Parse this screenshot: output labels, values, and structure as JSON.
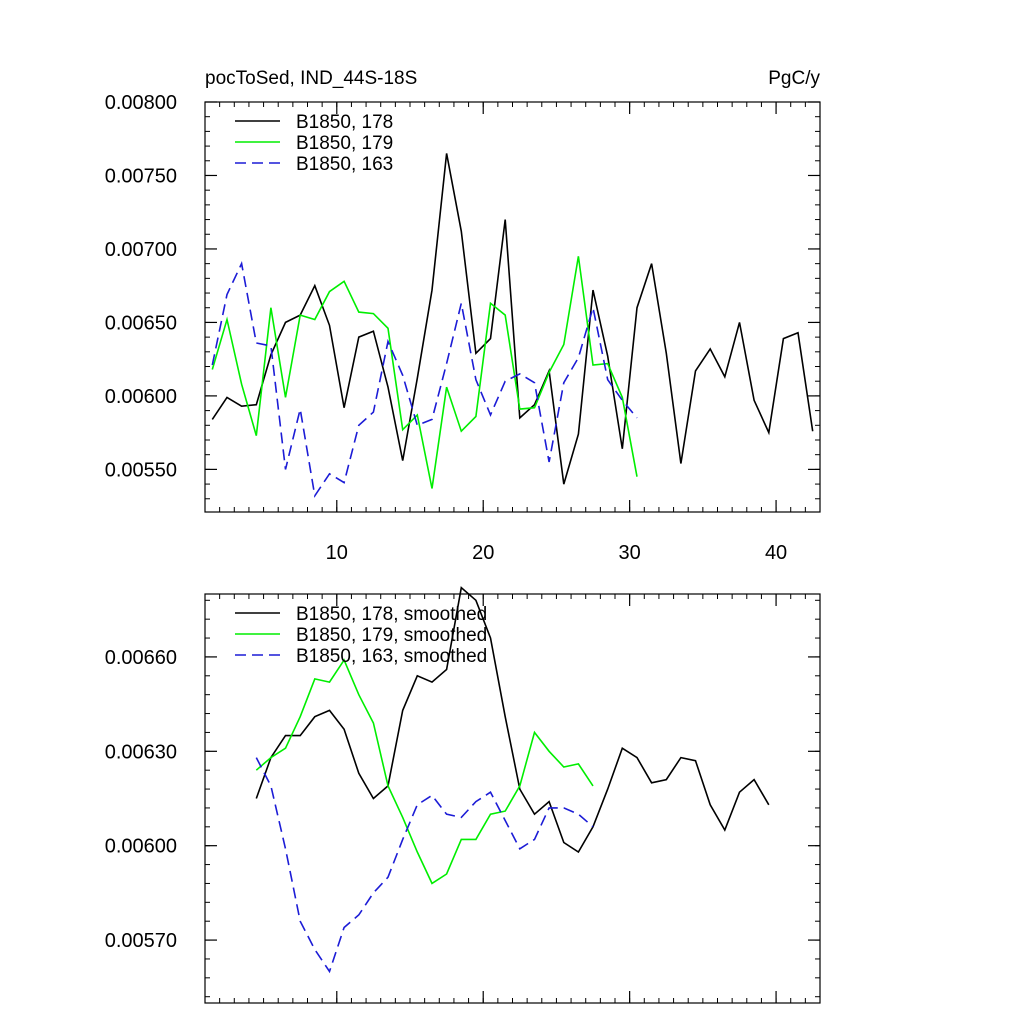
{
  "chart_data": [
    {
      "type": "line",
      "title_left": "pocToSed, IND_44S-18S",
      "title_right": "PgC/y",
      "xlim": [
        1,
        43
      ],
      "ylim": [
        0.00521,
        0.008
      ],
      "xticks": [
        10,
        20,
        30,
        40
      ],
      "xtick_labels": [
        "10",
        "20",
        "30",
        "40"
      ],
      "yticks": [
        0.0055,
        0.006,
        0.0065,
        0.007,
        0.0075,
        0.008
      ],
      "ytick_labels": [
        "0.00550",
        "0.00600",
        "0.00650",
        "0.00700",
        "0.00750",
        "0.00800"
      ],
      "legend_position": "top-left",
      "series": [
        {
          "name": "B1850, 178",
          "color": "#000000",
          "dash": "solid",
          "x": [
            1.5,
            2.5,
            3.5,
            4.5,
            5.5,
            6.5,
            7.5,
            8.5,
            9.5,
            10.5,
            11.5,
            12.5,
            13.5,
            14.5,
            15.5,
            16.5,
            17.5,
            18.5,
            19.5,
            20.5,
            21.5,
            22.5,
            23.5,
            24.5,
            25.5,
            26.5,
            27.5,
            28.5,
            29.5,
            30.5,
            31.5,
            32.5,
            33.5,
            34.5,
            35.5,
            36.5,
            37.5,
            38.5,
            39.5,
            40.5,
            41.5,
            42.5
          ],
          "y": [
            0.00584,
            0.00599,
            0.00593,
            0.00594,
            0.00628,
            0.0065,
            0.00655,
            0.00675,
            0.00648,
            0.00592,
            0.0064,
            0.00644,
            0.00606,
            0.00556,
            0.00612,
            0.00672,
            0.00765,
            0.00712,
            0.00629,
            0.00639,
            0.0072,
            0.00585,
            0.00594,
            0.00617,
            0.0054,
            0.00574,
            0.00672,
            0.00627,
            0.00564,
            0.0066,
            0.0069,
            0.00629,
            0.00554,
            0.00617,
            0.00632,
            0.00613,
            0.0065,
            0.00597,
            0.00575,
            0.00639,
            0.00643,
            0.00576
          ]
        },
        {
          "name": "B1850, 179",
          "color": "#00ee00",
          "dash": "solid",
          "x": [
            1.5,
            2.5,
            3.5,
            4.5,
            5.5,
            6.5,
            7.5,
            8.5,
            9.5,
            10.5,
            11.5,
            12.5,
            13.5,
            14.5,
            15.5,
            16.5,
            17.5,
            18.5,
            19.5,
            20.5,
            21.5,
            22.5,
            23.5,
            24.5,
            25.5,
            26.5,
            27.5,
            28.5,
            29.5,
            30.5
          ],
          "y": [
            0.00618,
            0.00652,
            0.00608,
            0.00573,
            0.0066,
            0.00599,
            0.00655,
            0.00652,
            0.00671,
            0.00678,
            0.00657,
            0.00656,
            0.00646,
            0.00577,
            0.00587,
            0.00537,
            0.00606,
            0.00576,
            0.00586,
            0.00663,
            0.00655,
            0.00591,
            0.00592,
            0.00616,
            0.00635,
            0.00695,
            0.00621,
            0.00622,
            0.00599,
            0.00545
          ]
        },
        {
          "name": "B1850, 163",
          "color": "#1c1cd6",
          "dash": "dashed",
          "x": [
            1.5,
            2.5,
            3.5,
            4.5,
            5.5,
            6.5,
            7.5,
            8.5,
            9.5,
            10.5,
            11.5,
            12.5,
            13.5,
            14.5,
            15.5,
            16.5,
            17.5,
            18.5,
            19.5,
            20.5,
            21.5,
            22.5,
            23.5,
            24.5,
            25.5,
            26.5,
            27.5,
            28.5,
            29.5,
            30.5
          ],
          "y": [
            0.00621,
            0.00669,
            0.0069,
            0.00636,
            0.00634,
            0.0055,
            0.00591,
            0.00532,
            0.00547,
            0.00541,
            0.0058,
            0.00589,
            0.00637,
            0.00614,
            0.0058,
            0.00584,
            0.00622,
            0.00663,
            0.00611,
            0.00587,
            0.0061,
            0.00615,
            0.00609,
            0.00555,
            0.00609,
            0.00626,
            0.0066,
            0.00611,
            0.00597,
            0.00585
          ]
        }
      ]
    },
    {
      "type": "line",
      "xlim": [
        1,
        43
      ],
      "ylim": [
        0.0055,
        0.0068
      ],
      "xticks": [
        10,
        20,
        30,
        40
      ],
      "yticks": [
        0.0057,
        0.006,
        0.0063,
        0.0066
      ],
      "ytick_labels": [
        "0.00570",
        "0.00600",
        "0.00630",
        "0.00660"
      ],
      "legend_position": "top-left",
      "series": [
        {
          "name": "B1850, 178, smoothed",
          "color": "#000000",
          "dash": "solid",
          "x": [
            4.5,
            5.5,
            6.5,
            7.5,
            8.5,
            9.5,
            10.5,
            11.5,
            12.5,
            13.5,
            14.5,
            15.5,
            16.5,
            17.5,
            18.5,
            19.5,
            20.5,
            21.5,
            22.5,
            23.5,
            24.5,
            25.5,
            26.5,
            27.5,
            28.5,
            29.5,
            30.5,
            31.5,
            32.5,
            33.5,
            34.5,
            35.5,
            36.5,
            37.5,
            38.5,
            39.5
          ],
          "y": [
            0.00615,
            0.00628,
            0.00635,
            0.00635,
            0.00641,
            0.00643,
            0.00637,
            0.00623,
            0.00615,
            0.00619,
            0.00643,
            0.00654,
            0.00652,
            0.00656,
            0.00682,
            0.00678,
            0.00666,
            0.00641,
            0.00618,
            0.0061,
            0.00614,
            0.00601,
            0.00598,
            0.00606,
            0.00618,
            0.00631,
            0.00628,
            0.0062,
            0.00621,
            0.00628,
            0.00627,
            0.00613,
            0.00605,
            0.00617,
            0.00621,
            0.00613
          ]
        },
        {
          "name": "B1850, 179, smoothed",
          "color": "#00ee00",
          "dash": "solid",
          "x": [
            4.5,
            5.5,
            6.5,
            7.5,
            8.5,
            9.5,
            10.5,
            11.5,
            12.5,
            13.5,
            14.5,
            15.5,
            16.5,
            17.5,
            18.5,
            19.5,
            20.5,
            21.5,
            22.5,
            23.5,
            24.5,
            25.5,
            26.5,
            27.5
          ],
          "y": [
            0.00624,
            0.00628,
            0.00631,
            0.00641,
            0.00653,
            0.00652,
            0.00659,
            0.00648,
            0.00639,
            0.00619,
            0.00609,
            0.00598,
            0.00588,
            0.00591,
            0.00602,
            0.00602,
            0.0061,
            0.00611,
            0.00619,
            0.00636,
            0.0063,
            0.00625,
            0.00626,
            0.00619
          ]
        },
        {
          "name": "B1850, 163, smoothed",
          "color": "#1c1cd6",
          "dash": "dashed",
          "x": [
            4.5,
            5.5,
            6.5,
            7.5,
            8.5,
            9.5,
            10.5,
            11.5,
            12.5,
            13.5,
            14.5,
            15.5,
            16.5,
            17.5,
            18.5,
            19.5,
            20.5,
            21.5,
            22.5,
            23.5,
            24.5,
            25.5,
            26.5,
            27.5
          ],
          "y": [
            0.00628,
            0.00619,
            0.00599,
            0.00576,
            0.00567,
            0.0056,
            0.00574,
            0.00578,
            0.00585,
            0.0059,
            0.00602,
            0.00613,
            0.00616,
            0.0061,
            0.00609,
            0.00614,
            0.00617,
            0.00608,
            0.00599,
            0.00602,
            0.00612,
            0.00612,
            0.0061,
            0.00606
          ]
        }
      ]
    }
  ]
}
